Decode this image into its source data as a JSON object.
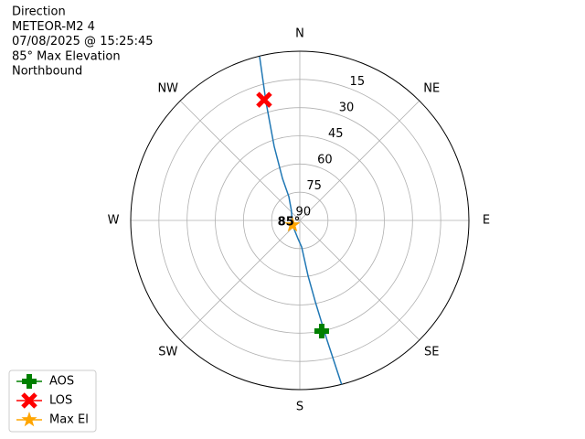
{
  "chart_data": {
    "type": "polar",
    "text_lines": [
      "Direction",
      "METEOR-M2 4",
      "07/08/2025 @ 15:25:45",
      "85° Max Elevation",
      "Northbound"
    ],
    "annotation": "85°",
    "xticks": [
      {
        "value": 0,
        "label": "N"
      },
      {
        "value": 45,
        "label": "NE"
      },
      {
        "value": 90,
        "label": "E"
      },
      {
        "value": 135,
        "label": "SE"
      },
      {
        "value": 180,
        "label": "S"
      },
      {
        "value": 225,
        "label": "SW"
      },
      {
        "value": 270,
        "label": "W"
      },
      {
        "value": 315,
        "label": "NW"
      }
    ],
    "ylim": [
      90,
      0
    ],
    "yticks": [
      15,
      30,
      45,
      60,
      75,
      90
    ],
    "grid": true,
    "legend": "lower left",
    "series": [
      {
        "color": "#1f77b4",
        "marker": "line",
        "x": [
          346.2,
          344,
          340.9,
          337.5,
          335.2,
          320,
          238,
          185,
          176,
          171.5,
          169.2,
          167.2,
          165.7
        ],
        "values": [
          0.3,
          25,
          48.3,
          66,
          76.1,
          83,
          85.4,
          80,
          75.8,
          60,
          45.9,
          25,
          0
        ]
      },
      {
        "name": "AOS",
        "color": "#008000",
        "marker": "plus",
        "x": [
          168.8
        ],
        "values": [
          30
        ]
      },
      {
        "name": "LOS",
        "color": "#ff0000",
        "marker": "x",
        "x": [
          343.5
        ],
        "values": [
          23.1
        ]
      },
      {
        "name": "Max El",
        "color": "#ffa500",
        "marker": "star",
        "x": [
          238
        ],
        "values": [
          85.4
        ]
      }
    ]
  }
}
